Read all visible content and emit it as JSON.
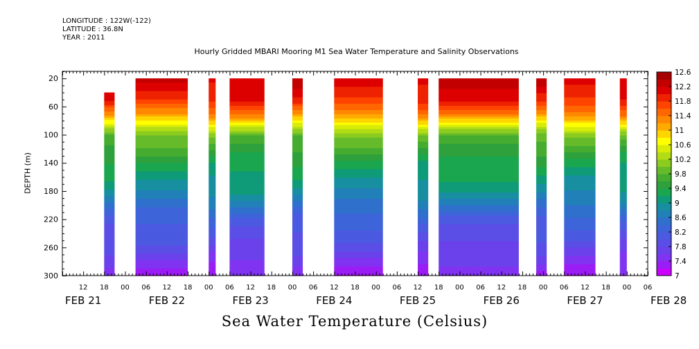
{
  "header": {
    "lines": [
      "LONGITUDE : 122W(-122)",
      "LATITUDE : 36.8N",
      "YEAR : 2011"
    ]
  },
  "chart_data": {
    "type": "heatmap",
    "title": "Hourly Gridded MBARI Mooring M1 Sea Water Temperature and Salinity Observations",
    "ylabel": "DEPTH (m)",
    "variable_title": "Sea Water Temperature (Celsius)",
    "x_start_hour": 6,
    "x_end_hour": 174,
    "x_hour_ticks": [
      "12",
      "18",
      "00",
      "06",
      "12",
      "18",
      "00",
      "06",
      "12",
      "18",
      "00",
      "06",
      "12",
      "18",
      "00",
      "06",
      "12",
      "18",
      "00",
      "06",
      "12",
      "18",
      "00",
      "06",
      "12",
      "18",
      "00",
      "06"
    ],
    "x_date_labels": [
      "FEB 21",
      "FEB 22",
      "FEB 23",
      "FEB 24",
      "FEB 25",
      "FEB 26",
      "FEB 27",
      "FEB 28"
    ],
    "ylim": [
      300,
      0
    ],
    "y_ticks": [
      20,
      60,
      100,
      140,
      180,
      220,
      260,
      300
    ],
    "colorbar": {
      "levels": [
        7,
        7.2,
        7.4,
        7.6,
        7.8,
        8,
        8.2,
        8.4,
        8.6,
        8.8,
        9,
        9.2,
        9.4,
        9.6,
        9.8,
        10,
        10.2,
        10.4,
        10.6,
        10.8,
        11,
        11.2,
        11.4,
        11.6,
        11.8,
        12,
        12.2,
        12.4,
        12.6
      ],
      "tick_labels": [
        "7",
        "7.4",
        "7.8",
        "8.2",
        "8.6",
        "9",
        "9.4",
        "9.8",
        "10.2",
        "10.6",
        "11",
        "11.4",
        "11.8",
        "12.2",
        "12.6"
      ],
      "colors": [
        "#cc00ff",
        "#9b1df5",
        "#8033f0",
        "#6a41ea",
        "#5a4ee6",
        "#4b5ae0",
        "#3d64d8",
        "#2f70cc",
        "#2280b8",
        "#178fa0",
        "#0f9b78",
        "#1aa64e",
        "#2ea13c",
        "#45ac30",
        "#66bb2a",
        "#8ccc1f",
        "#b3dc14",
        "#d9ec08",
        "#ffff00",
        "#ffd500",
        "#ffaa00",
        "#ff8800",
        "#ff6600",
        "#ff4400",
        "#ee2200",
        "#dd0000",
        "#c20000",
        "#a60000"
      ]
    },
    "data_segments": [
      {
        "start_hour": 18,
        "end_hour": 21,
        "top_depth": 40
      },
      {
        "start_hour": 27,
        "end_hour": 42,
        "top_depth": 20
      },
      {
        "start_hour": 48,
        "end_hour": 50,
        "top_depth": 20
      },
      {
        "start_hour": 54,
        "end_hour": 64,
        "top_depth": 20
      },
      {
        "start_hour": 72,
        "end_hour": 75,
        "top_depth": 20
      },
      {
        "start_hour": 84,
        "end_hour": 98,
        "top_depth": 20
      },
      {
        "start_hour": 108,
        "end_hour": 111,
        "top_depth": 20
      },
      {
        "start_hour": 114,
        "end_hour": 137,
        "top_depth": 20
      },
      {
        "start_hour": 142,
        "end_hour": 145,
        "top_depth": 20
      },
      {
        "start_hour": 150,
        "end_hour": 159,
        "top_depth": 20
      },
      {
        "start_hour": 166,
        "end_hour": 168,
        "top_depth": 20
      }
    ],
    "mean_profile": [
      {
        "depth": 20,
        "temp": 12.2
      },
      {
        "depth": 50,
        "temp": 11.9
      },
      {
        "depth": 70,
        "temp": 11.3
      },
      {
        "depth": 85,
        "temp": 10.6
      },
      {
        "depth": 100,
        "temp": 9.9
      },
      {
        "depth": 140,
        "temp": 9.3
      },
      {
        "depth": 180,
        "temp": 8.9
      },
      {
        "depth": 220,
        "temp": 8.2
      },
      {
        "depth": 260,
        "temp": 7.8
      },
      {
        "depth": 300,
        "temp": 7.3
      }
    ]
  }
}
